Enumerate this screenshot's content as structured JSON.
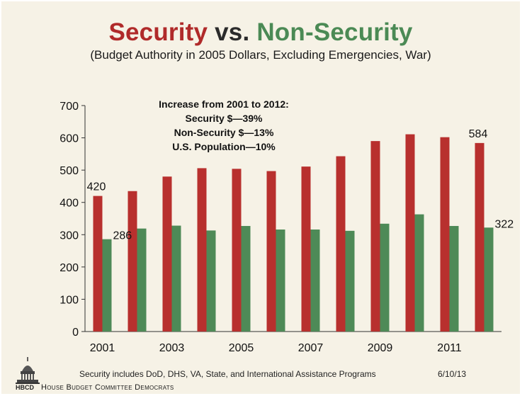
{
  "title": {
    "security": "Security",
    "vs": "vs.",
    "non_security": "Non-Security"
  },
  "subtitle": "(Budget Authority in 2005 Dollars, Excluding Emergencies, War)",
  "note": {
    "heading": "Increase from 2001 to 2012:",
    "lines": [
      "Security $—39%",
      "Non-Security $—13%",
      "U.S. Population—10%"
    ]
  },
  "footnote": "Security includes DoD, DHS, VA, State, and International Assistance Programs",
  "date": "6/10/13",
  "org": "House Budget Committee Democrats",
  "logo_text": "HBCD",
  "colors": {
    "security": "#b8302e",
    "non_security": "#4e8a57",
    "title_security": "#b02a2a",
    "title_non_security": "#4b8a55",
    "background": "#f6f2e6"
  },
  "chart_data": {
    "type": "bar",
    "categories": [
      "2001",
      "2002",
      "2003",
      "2004",
      "2005",
      "2006",
      "2007",
      "2008",
      "2009",
      "2010",
      "2011",
      "2012"
    ],
    "x_tick_labels": [
      "2001",
      "2003",
      "2005",
      "2007",
      "2009",
      "2011"
    ],
    "series": [
      {
        "name": "Security",
        "values": [
          420,
          435,
          480,
          506,
          504,
          497,
          511,
          543,
          590,
          611,
          602,
          584
        ]
      },
      {
        "name": "Non-Security",
        "values": [
          286,
          319,
          328,
          313,
          327,
          316,
          316,
          312,
          334,
          363,
          327,
          322
        ]
      }
    ],
    "data_labels": [
      {
        "series": 0,
        "index": 0,
        "text": "420"
      },
      {
        "series": 1,
        "index": 0,
        "text": "286"
      },
      {
        "series": 0,
        "index": 11,
        "text": "584"
      },
      {
        "series": 1,
        "index": 11,
        "text": "322"
      }
    ],
    "ylim": [
      0,
      700
    ],
    "yticks": [
      0,
      100,
      200,
      300,
      400,
      500,
      600,
      700
    ],
    "grid": false,
    "legend": "none"
  }
}
